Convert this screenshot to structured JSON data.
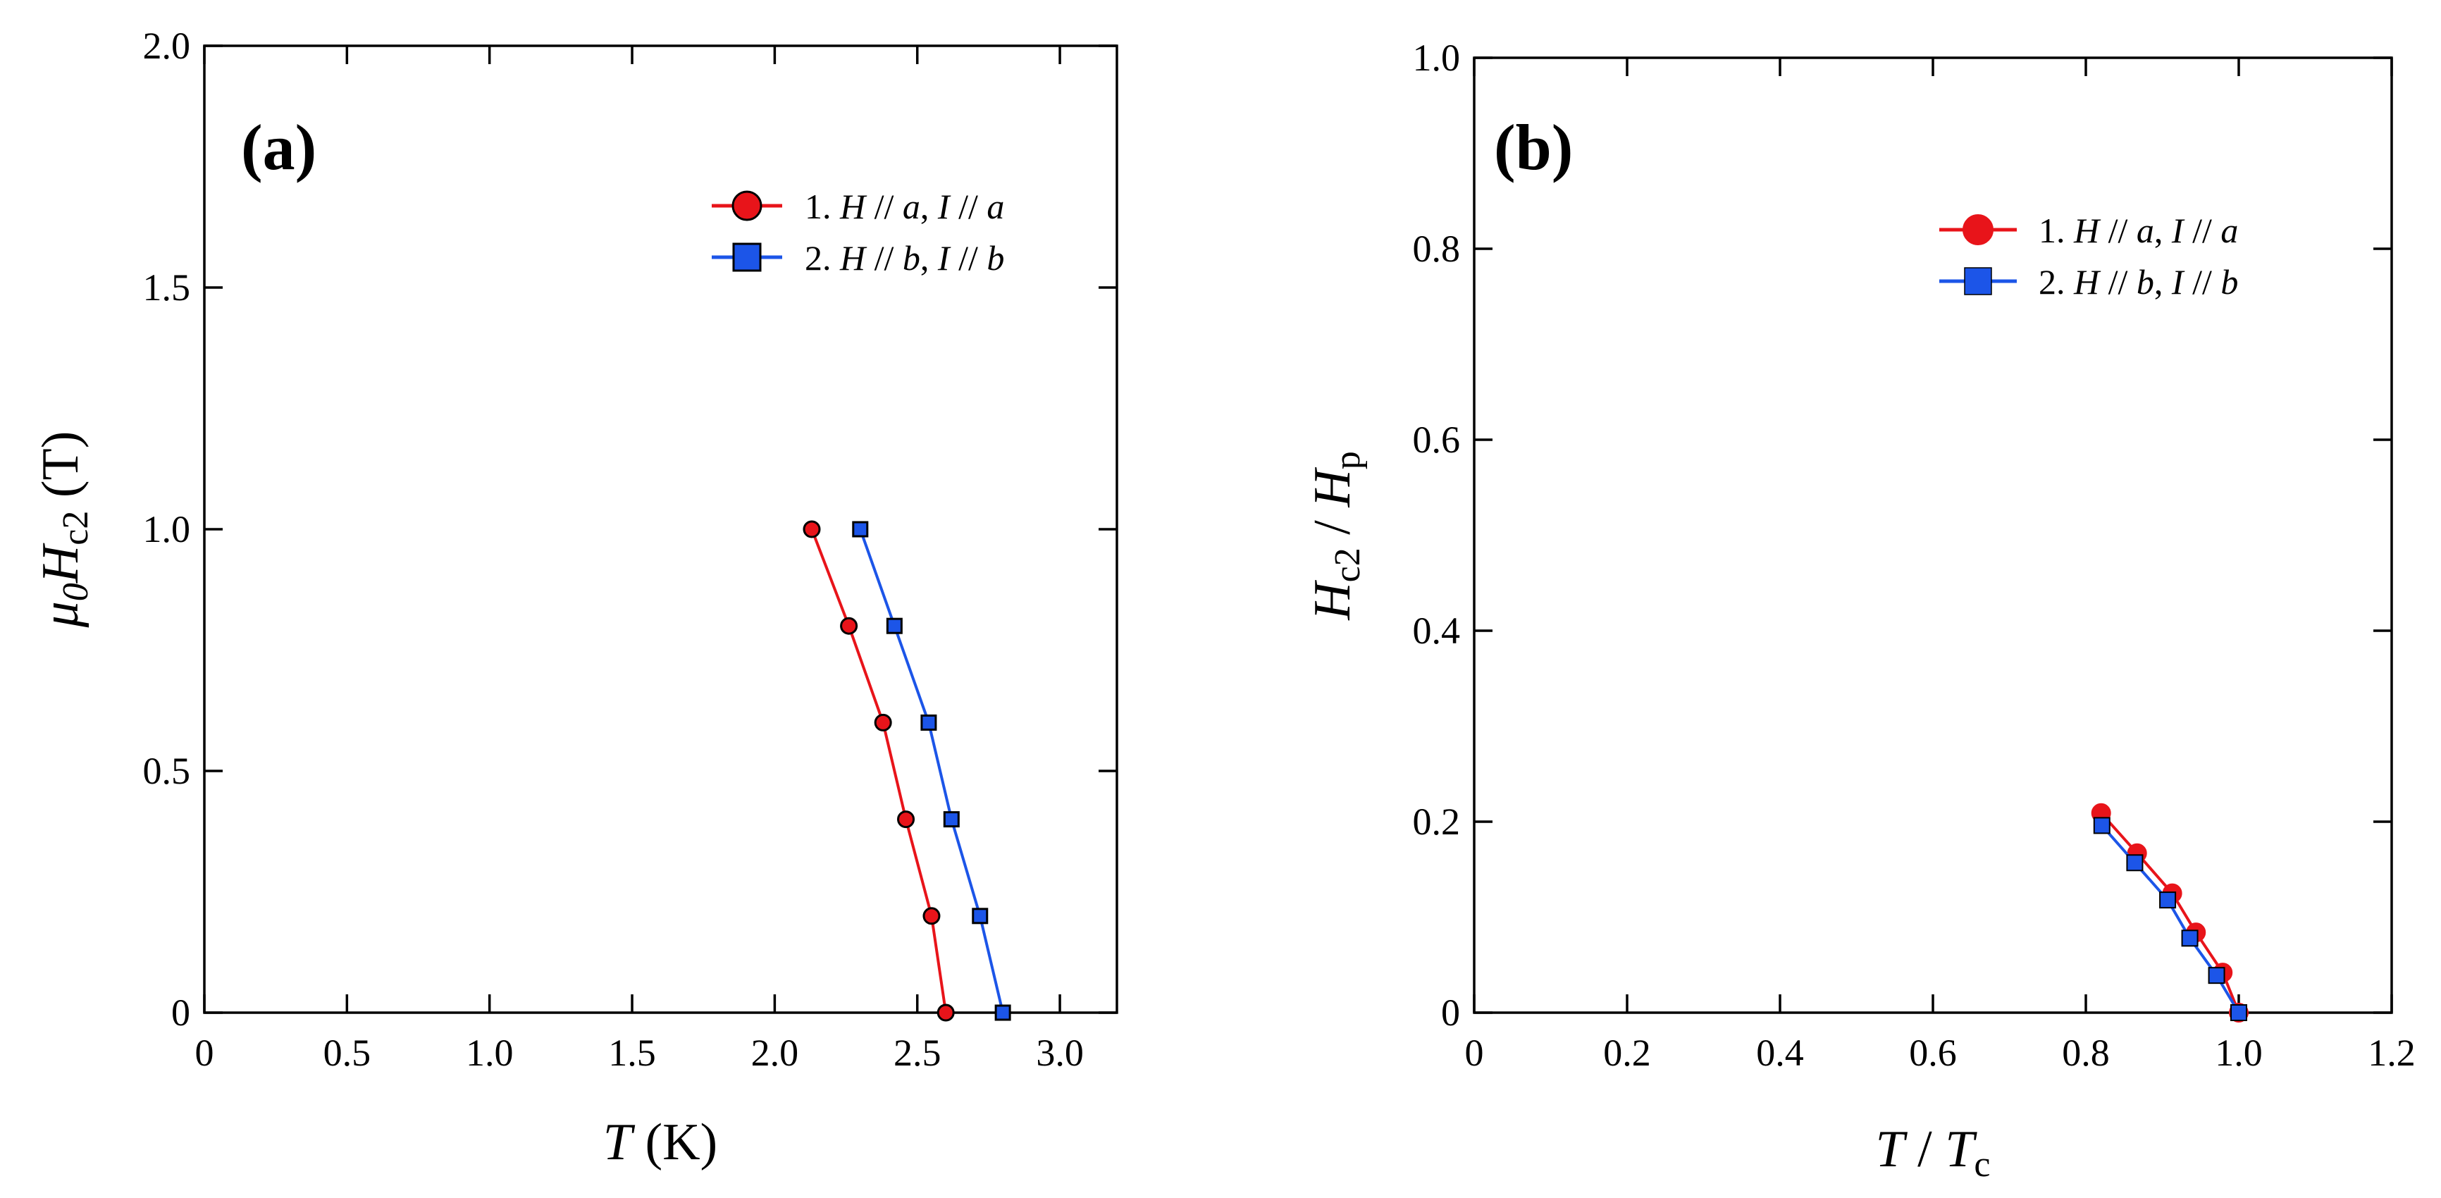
{
  "chart_data": [
    {
      "type": "line",
      "panel_label": "(a)",
      "xlabel": {
        "var": "T",
        "rest": " (K)"
      },
      "ylabel": {
        "prefix": "μ",
        "prefix_sub": "0",
        "var": "H",
        "var_sub": "c2",
        "unit": " (T)"
      },
      "xlim": [
        0,
        3.2
      ],
      "ylim": [
        0,
        2.0
      ],
      "xticks": [
        0,
        0.5,
        1.0,
        1.5,
        2.0,
        2.5,
        3.0
      ],
      "xtick_labels": [
        "0",
        "0.5",
        "1.0",
        "1.5",
        "2.0",
        "2.5",
        "3.0"
      ],
      "yticks": [
        0,
        0.5,
        1.0,
        1.5,
        2.0
      ],
      "ytick_labels": [
        "0",
        "0.5",
        "1.0",
        "1.5",
        "2.0"
      ],
      "legend_position": "top-right",
      "series": [
        {
          "name": "1. H // a, I // a",
          "legend": {
            "num": "1.",
            "f1": "H",
            "s1": " // ",
            "a1": "a",
            "sep": ", ",
            "f2": "I",
            "s2": " // ",
            "a2": "a"
          },
          "color": "#e8141a",
          "marker": "circle",
          "x": [
            2.13,
            2.26,
            2.38,
            2.46,
            2.55,
            2.6
          ],
          "y": [
            1.0,
            0.8,
            0.6,
            0.4,
            0.2,
            0.0
          ]
        },
        {
          "name": "2. H // b, I // b",
          "legend": {
            "num": "2.",
            "f1": "H",
            "s1": " // ",
            "a1": "b",
            "sep": ", ",
            "f2": "I",
            "s2": " // ",
            "a2": "b"
          },
          "color": "#1c55e8",
          "marker": "square",
          "x": [
            2.3,
            2.42,
            2.54,
            2.62,
            2.72,
            2.8
          ],
          "y": [
            1.0,
            0.8,
            0.6,
            0.4,
            0.2,
            0.0
          ]
        }
      ]
    },
    {
      "type": "line",
      "panel_label": "(b)",
      "xlabel": {
        "var": "T",
        "mid": " / ",
        "var2": "T",
        "var2_sub": "c"
      },
      "ylabel": {
        "var": "H",
        "var_sub": "c2",
        "mid": " / ",
        "var2": "H",
        "var2_sub": "p"
      },
      "xlim": [
        0,
        1.2
      ],
      "ylim": [
        0,
        1.0
      ],
      "xticks": [
        0,
        0.2,
        0.4,
        0.6,
        0.8,
        1.0,
        1.2
      ],
      "xtick_labels": [
        "0",
        "0.2",
        "0.4",
        "0.6",
        "0.8",
        "1.0",
        "1.2"
      ],
      "yticks": [
        0,
        0.2,
        0.4,
        0.6,
        0.8,
        1.0
      ],
      "ytick_labels": [
        "0",
        "0.2",
        "0.4",
        "0.6",
        "0.8",
        "1.0"
      ],
      "legend_position": "top-right",
      "series": [
        {
          "name": "1. H // a, I // a",
          "legend": {
            "num": "1.",
            "f1": "H",
            "s1": " // ",
            "a1": "a",
            "sep": ", ",
            "f2": "I",
            "s2": " // ",
            "a2": "a"
          },
          "color": "#e8141a",
          "marker": "circle",
          "x": [
            0.82,
            0.867,
            0.913,
            0.944,
            0.979,
            1.0
          ],
          "y": [
            0.209,
            0.167,
            0.125,
            0.084,
            0.042,
            0.0
          ]
        },
        {
          "name": "2. H // b, I // b",
          "legend": {
            "num": "2.",
            "f1": "H",
            "s1": " // ",
            "a1": "b",
            "sep": ", ",
            "f2": "I",
            "s2": " // ",
            "a2": "b"
          },
          "color": "#1c55e8",
          "marker": "square",
          "x": [
            0.821,
            0.864,
            0.907,
            0.936,
            0.971,
            1.0
          ],
          "y": [
            0.196,
            0.157,
            0.118,
            0.078,
            0.039,
            0.0
          ]
        }
      ]
    }
  ]
}
